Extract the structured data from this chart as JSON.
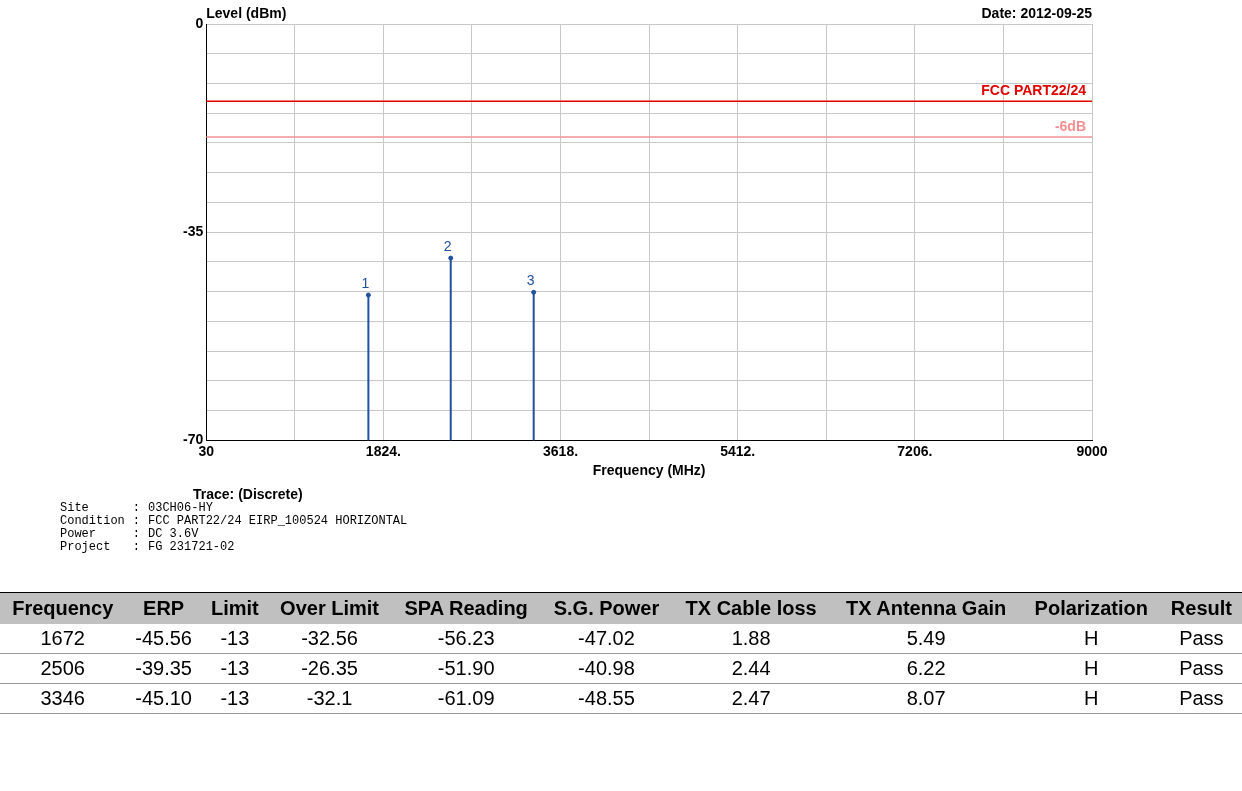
{
  "chart_data": {
    "type": "lollipop",
    "marker": "circle",
    "xlabel": "Frequency (MHz)",
    "ylabel": "Level (dBm)",
    "x": [
      1672,
      2506,
      3346
    ],
    "series": [
      {
        "color": "#2050a0",
        "values": [
          -45.56,
          -39.35,
          -45.1
        ]
      }
    ],
    "xlim": [
      30,
      9000
    ],
    "xticks": [
      30,
      {
        "value": 927,
        "label": null
      },
      {
        "value": 1824,
        "label": "1824."
      },
      {
        "value": 2721,
        "label": null
      },
      {
        "value": 3618,
        "label": "3618."
      },
      {
        "value": 4515,
        "label": null
      },
      {
        "value": 5412,
        "label": "5412."
      },
      {
        "value": 6309,
        "label": null
      },
      {
        "value": 7206,
        "label": "7206."
      },
      {
        "value": 8103,
        "label": null
      },
      9000
    ],
    "ylim": [
      -70,
      0
    ],
    "yticks": [
      0,
      {
        "value": -5,
        "label": null
      },
      {
        "value": -10,
        "label": null
      },
      {
        "value": -15,
        "label": null
      },
      {
        "value": -20,
        "label": null
      },
      {
        "value": -25,
        "label": null
      },
      {
        "value": -30,
        "label": null
      },
      -35,
      {
        "value": -40,
        "label": null
      },
      {
        "value": -45,
        "label": null
      },
      {
        "value": -50,
        "label": null
      },
      {
        "value": -55,
        "label": null
      },
      {
        "value": -60,
        "label": null
      },
      {
        "value": -65,
        "label": null
      },
      -70
    ],
    "grid": true,
    "legend": false,
    "ref_lines": [
      {
        "axis": "y",
        "value": -13,
        "label": "FCC PART22/24",
        "color": "#e00000"
      },
      {
        "axis": "y",
        "value": -19,
        "label": "-6dB",
        "color": "#f29090"
      }
    ],
    "annotations": [
      "Date: 2012-09-25",
      {
        "text": "1",
        "x": 1672,
        "y": -45.56
      },
      {
        "text": "2",
        "x": 2506,
        "y": -39.35
      },
      {
        "text": "3",
        "x": 3346,
        "y": -45.1
      },
      "Trace: (Discrete)",
      "Site\t:\t03CH06-HY",
      "Condition\t:\tFCC PART22/24 EIRP_100524 HORIZONTAL",
      "Power\t:\tDC 3.6V",
      "Project\t:\tFG 231721-02",
      "Frequency\tERP\tLimit\tOver Limit\tSPA Reading\tS.G. Power\tTX Cable loss\tTX Antenna Gain\tPolarization\tResult",
      "1672\t-45.56\t-13\t-32.56\t-56.23\t-47.02\t1.88\t5.49\tH\tPass",
      "2506\t-39.35\t-13\t-26.35\t-51.90\t-40.98\t2.44\t6.22\tH\tPass",
      "3346\t-45.10\t-13\t-32.1\t-61.09\t-48.55\t2.47\t8.07\tH\tPass"
    ]
  }
}
